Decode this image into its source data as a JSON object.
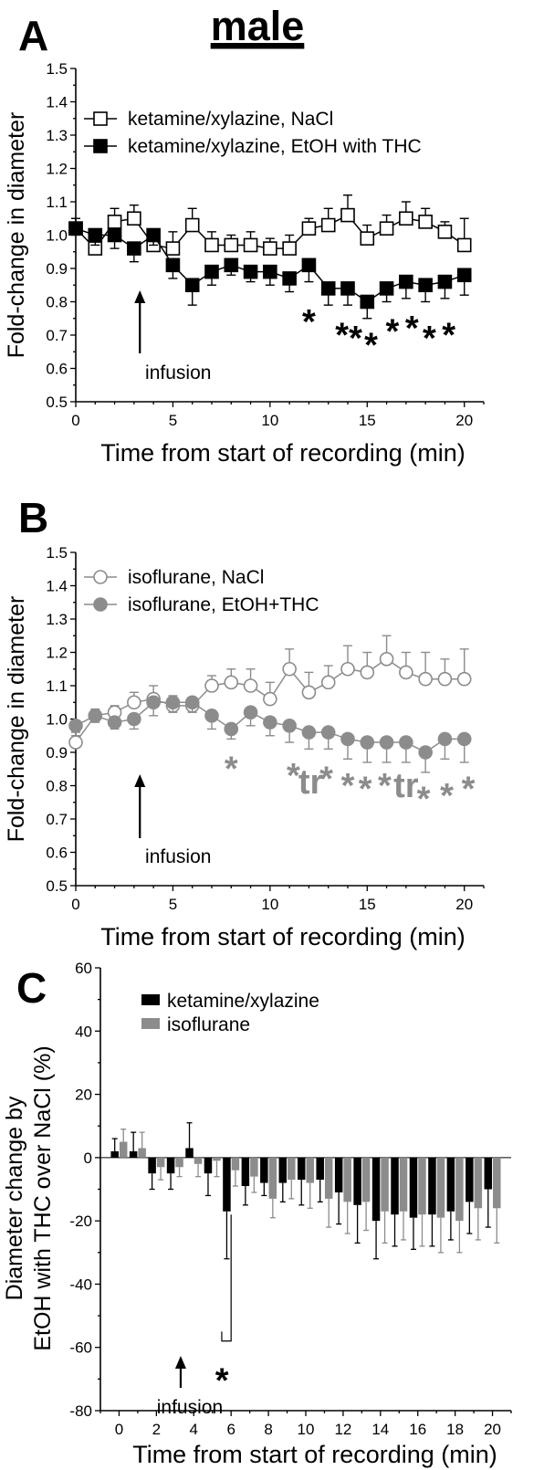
{
  "title": "male",
  "chart_data": [
    {
      "panel": "A",
      "type": "line",
      "xlabel": "Time from start of recording (min)",
      "ylabel": "Fold-change in diameter",
      "xlim": [
        0,
        21
      ],
      "ylim": [
        0.5,
        1.5
      ],
      "xticks": [
        "0",
        "5",
        "10",
        "15",
        "20"
      ],
      "yticks": [
        "0.5",
        "0.6",
        "0.7",
        "0.8",
        "0.9",
        "1.0",
        "1.1",
        "1.2",
        "1.3",
        "1.4",
        "1.5"
      ],
      "annotation": "infusion",
      "annotation_x": 3.3,
      "legend_position": "top-left",
      "x": [
        0,
        1,
        2,
        3,
        4,
        5,
        6,
        7,
        8,
        9,
        10,
        11,
        12,
        13,
        14,
        15,
        16,
        17,
        18,
        19,
        20
      ],
      "series": [
        {
          "name": "ketamine/xylazine, NaCl",
          "marker": "open-square",
          "color": "#000000",
          "values": [
            1.02,
            0.96,
            1.04,
            1.05,
            0.97,
            0.96,
            1.03,
            0.97,
            0.97,
            0.97,
            0.96,
            0.96,
            1.02,
            1.03,
            1.06,
            0.99,
            1.02,
            1.05,
            1.04,
            1.01,
            0.97
          ],
          "errors": [
            0.03,
            0.03,
            0.04,
            0.04,
            0.04,
            0.05,
            0.05,
            0.04,
            0.03,
            0.04,
            0.03,
            0.04,
            0.03,
            0.05,
            0.06,
            0.04,
            0.04,
            0.05,
            0.04,
            0.03,
            0.08
          ]
        },
        {
          "name": "ketamine/xylazine, EtOH with THC",
          "marker": "filled-square",
          "color": "#000000",
          "values": [
            1.02,
            1.0,
            1.0,
            0.96,
            1.0,
            0.91,
            0.85,
            0.89,
            0.91,
            0.89,
            0.89,
            0.87,
            0.91,
            0.84,
            0.84,
            0.8,
            0.84,
            0.86,
            0.85,
            0.86,
            0.88
          ],
          "errors": [
            0.02,
            0.03,
            0.04,
            0.04,
            0.03,
            0.04,
            0.06,
            0.04,
            0.03,
            0.03,
            0.04,
            0.04,
            0.05,
            0.05,
            0.05,
            0.05,
            0.04,
            0.05,
            0.05,
            0.05,
            0.06
          ]
        }
      ],
      "significance": [
        {
          "x": 12.0,
          "y": 0.75,
          "label": "*"
        },
        {
          "x": 13.7,
          "y": 0.71,
          "label": "*"
        },
        {
          "x": 14.4,
          "y": 0.7,
          "label": "*"
        },
        {
          "x": 15.2,
          "y": 0.68,
          "label": "*"
        },
        {
          "x": 16.3,
          "y": 0.72,
          "label": "*"
        },
        {
          "x": 17.3,
          "y": 0.73,
          "label": "*"
        },
        {
          "x": 18.2,
          "y": 0.7,
          "label": "*"
        },
        {
          "x": 19.2,
          "y": 0.71,
          "label": "*"
        }
      ]
    },
    {
      "panel": "B",
      "type": "line",
      "xlabel": "Time from start of recording (min)",
      "ylabel": "Fold-change in diameter",
      "xlim": [
        0,
        21
      ],
      "ylim": [
        0.5,
        1.5
      ],
      "xticks": [
        "0",
        "5",
        "10",
        "15",
        "20"
      ],
      "yticks": [
        "0.5",
        "0.6",
        "0.7",
        "0.8",
        "0.9",
        "1.0",
        "1.1",
        "1.2",
        "1.3",
        "1.4",
        "1.5"
      ],
      "annotation": "infusion",
      "annotation_x": 3.3,
      "legend_position": "top-left",
      "x": [
        0,
        1,
        2,
        3,
        4,
        5,
        6,
        7,
        8,
        9,
        10,
        11,
        12,
        13,
        14,
        15,
        16,
        17,
        18,
        19,
        20
      ],
      "series": [
        {
          "name": "isoflurane, NaCl",
          "marker": "open-circle",
          "color": "#8c8c8c",
          "values": [
            0.93,
            1.01,
            1.02,
            1.05,
            1.06,
            1.04,
            1.04,
            1.1,
            1.11,
            1.1,
            1.06,
            1.15,
            1.08,
            1.11,
            1.15,
            1.14,
            1.18,
            1.14,
            1.12,
            1.12,
            1.12
          ],
          "errors": [
            0.03,
            0.02,
            0.02,
            0.03,
            0.04,
            0.03,
            0.02,
            0.03,
            0.04,
            0.05,
            0.05,
            0.06,
            0.06,
            0.05,
            0.07,
            0.06,
            0.07,
            0.06,
            0.08,
            0.06,
            0.09
          ]
        },
        {
          "name": "isoflurane, EtOH+THC",
          "marker": "filled-circle",
          "color": "#8c8c8c",
          "values": [
            0.98,
            1.01,
            0.99,
            1.0,
            1.05,
            1.05,
            1.05,
            1.01,
            0.97,
            1.02,
            0.99,
            0.98,
            0.96,
            0.96,
            0.94,
            0.93,
            0.93,
            0.93,
            0.9,
            0.94,
            0.94
          ],
          "errors": [
            0.03,
            0.02,
            0.02,
            0.03,
            0.04,
            0.03,
            0.03,
            0.04,
            0.03,
            0.04,
            0.04,
            0.05,
            0.05,
            0.05,
            0.06,
            0.06,
            0.06,
            0.06,
            0.06,
            0.06,
            0.07
          ]
        }
      ],
      "significance": [
        {
          "x": 8.0,
          "y": 0.86,
          "label": "*"
        },
        {
          "x": 11.2,
          "y": 0.84,
          "label": "*"
        },
        {
          "x": 12.1,
          "y": 0.82,
          "label": "tr"
        },
        {
          "x": 12.9,
          "y": 0.83,
          "label": "*"
        },
        {
          "x": 14.0,
          "y": 0.81,
          "label": "*"
        },
        {
          "x": 14.9,
          "y": 0.8,
          "label": "*"
        },
        {
          "x": 15.9,
          "y": 0.81,
          "label": "*"
        },
        {
          "x": 17.0,
          "y": 0.81,
          "label": "tr"
        },
        {
          "x": 17.9,
          "y": 0.77,
          "label": "*"
        },
        {
          "x": 19.1,
          "y": 0.78,
          "label": "*"
        },
        {
          "x": 20.2,
          "y": 0.8,
          "label": "*"
        }
      ]
    },
    {
      "panel": "C",
      "type": "bar",
      "xlabel": "Time from start of recording (min)",
      "ylabel_line1": "Diameter change by",
      "ylabel_line2": "EtOH with THC over NaCl (%)",
      "xlim": [
        -1,
        21
      ],
      "ylim": [
        -80,
        60
      ],
      "xticks": [
        "0",
        "2",
        "4",
        "6",
        "8",
        "10",
        "12",
        "14",
        "16",
        "18",
        "20"
      ],
      "yticks": [
        "-80",
        "-60",
        "-40",
        "-20",
        "0",
        "20",
        "40",
        "60"
      ],
      "annotation": "infusion",
      "annotation_x": 3.3,
      "legend_position": "top-left",
      "x": [
        0,
        1,
        2,
        3,
        4,
        5,
        6,
        7,
        8,
        9,
        10,
        11,
        12,
        13,
        14,
        15,
        16,
        17,
        18,
        19,
        20
      ],
      "series": [
        {
          "name": "ketamine/xylazine",
          "color": "#000000",
          "values": [
            2,
            2,
            -5,
            -5,
            3,
            -5,
            -17,
            -9,
            -8,
            -8,
            -7,
            -7,
            -11,
            -15,
            -20,
            -18,
            -19,
            -18,
            -17,
            -14,
            -10
          ],
          "errors": [
            4,
            6,
            5,
            5,
            8,
            7,
            15,
            6,
            4,
            6,
            8,
            7,
            10,
            12,
            12,
            10,
            10,
            10,
            9,
            10,
            12
          ]
        },
        {
          "name": "isoflurane",
          "color": "#8c8c8c",
          "values": [
            5,
            3,
            -3,
            -3,
            -2,
            -1,
            -4,
            -6,
            -13,
            -7,
            -8,
            -13,
            -14,
            -14,
            -17,
            -17,
            -18,
            -19,
            -20,
            -16,
            -16
          ],
          "errors": [
            4,
            5,
            4,
            3,
            4,
            5,
            5,
            5,
            6,
            6,
            8,
            9,
            10,
            9,
            10,
            9,
            10,
            11,
            10,
            10,
            11
          ]
        }
      ],
      "significance": [
        {
          "x": 5.8,
          "y": -70,
          "label": "*"
        }
      ]
    }
  ]
}
